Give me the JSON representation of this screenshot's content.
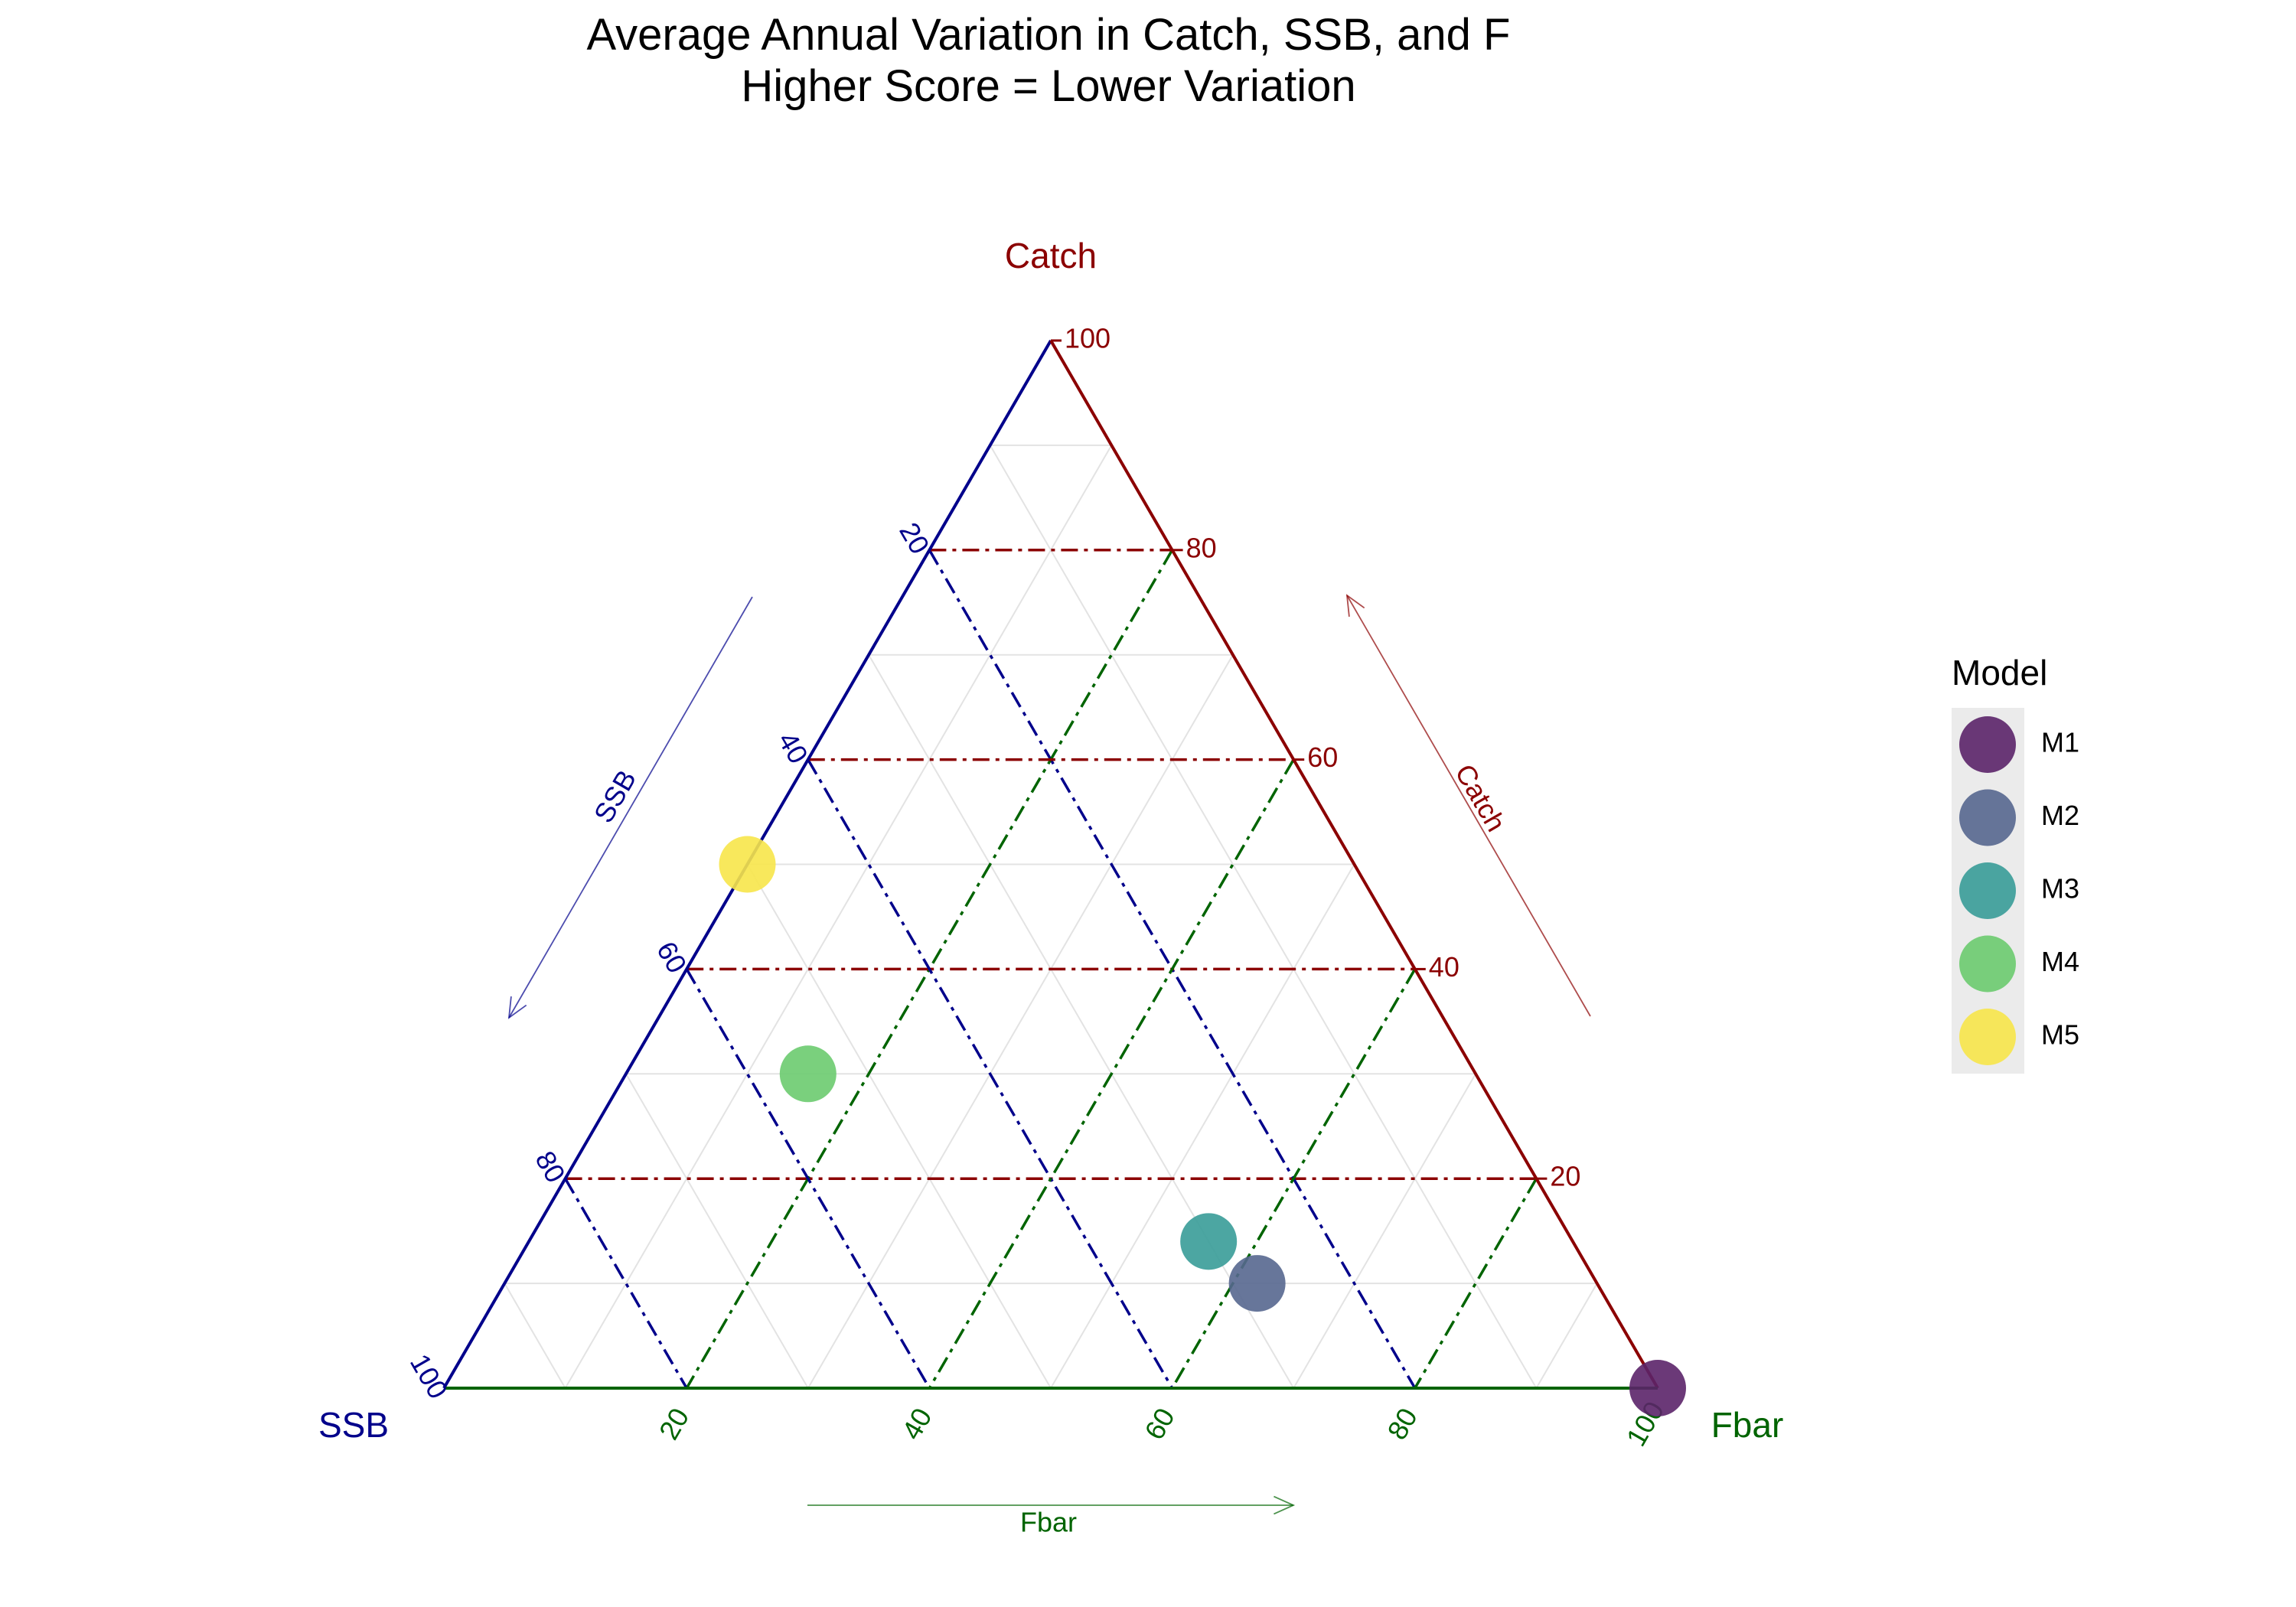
{
  "chart_data": {
    "type": "scatter",
    "subtype": "ternary",
    "title": "Average Annual Variation in Catch, SSB, and F",
    "subtitle": "Higher Score = Lower Variation",
    "axes": {
      "top": {
        "name": "Catch",
        "color": "#8B0000",
        "arrow_label": "Catch"
      },
      "left": {
        "name": "SSB",
        "color": "#00008B",
        "arrow_label": "SSB"
      },
      "right": {
        "name": "Fbar",
        "color": "#006400",
        "arrow_label": "Fbar"
      }
    },
    "ticks": {
      "catch": [
        "20",
        "40",
        "60",
        "80",
        "100"
      ],
      "ssb": [
        "20",
        "40",
        "60",
        "80",
        "100"
      ],
      "fbar": [
        "20",
        "40",
        "60",
        "80",
        "100"
      ]
    },
    "grid": true,
    "legend": {
      "title": "Model",
      "position": "right"
    },
    "series": [
      {
        "name": "M1",
        "color": "#5B2469",
        "catch": 0,
        "ssb": 0,
        "fbar": 100
      },
      {
        "name": "M2",
        "color": "#56678F",
        "catch": 10,
        "ssb": 28,
        "fbar": 62
      },
      {
        "name": "M3",
        "color": "#399C98",
        "catch": 14,
        "ssb": 30,
        "fbar": 56
      },
      {
        "name": "M4",
        "color": "#6BCB6F",
        "catch": 30,
        "ssb": 55,
        "fbar": 15
      },
      {
        "name": "M5",
        "color": "#F7E64A",
        "catch": 50,
        "ssb": 50,
        "fbar": 0
      }
    ]
  }
}
